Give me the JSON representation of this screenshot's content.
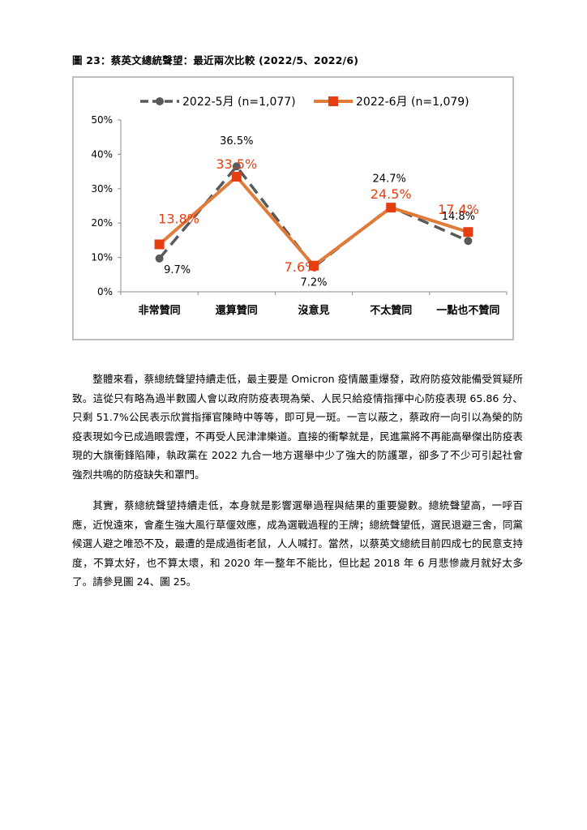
{
  "figure": {
    "caption": "圖 23：蔡英文總統聲望：最近兩次比較 (2022/5、2022/6)"
  },
  "chart_data": {
    "type": "line",
    "categories": [
      "非常贊同",
      "還算贊同",
      "沒意見",
      "不太贊同",
      "一點也不贊同"
    ],
    "ylim": [
      0,
      50
    ],
    "yticks": [
      0,
      10,
      20,
      30,
      40,
      50
    ],
    "ytick_labels": [
      "0%",
      "10%",
      "20%",
      "30%",
      "40%",
      "50%"
    ],
    "grid": false,
    "legend": "top",
    "series": [
      {
        "name": "2022-5月 (n=1,077)",
        "values": [
          9.7,
          36.5,
          7.2,
          24.7,
          14.8
        ],
        "labels": [
          "9.7%",
          "36.5%",
          "7.2%",
          "24.7%",
          "14.8%"
        ],
        "color": "#595959",
        "style": "dashed",
        "marker": "circle"
      },
      {
        "name": "2022-6月 (n=1,079)",
        "values": [
          13.8,
          33.5,
          7.6,
          24.5,
          17.4
        ],
        "labels": [
          "13.8%",
          "33.5%",
          "7.6%",
          "24.5%",
          "17.4%"
        ],
        "color": "#E07B39",
        "marker_color": "#E53E12",
        "style": "solid",
        "marker": "square"
      }
    ]
  },
  "paragraphs": [
    "整體來看，蔡總統聲望持續走低，最主要是 Omicron 疫情嚴重爆發，政府防疫效能備受質疑所致。這從只有略為過半數國人會以政府防疫表現為榮、人民只給疫情指揮中心防疫表現 65.86 分、只剩 51.7%公民表示欣賞指揮官陳時中等等，即可見一斑。一言以蔽之，蔡政府一向引以為榮的防疫表現如今已成過眼雲煙，不再受人民津津樂道。直接的衝擊就是，民進黨將不再能高舉傑出防疫表現的大旗衝鋒陷陣，執政黨在 2022 九合一地方選舉中少了強大的防護罩，卻多了不少可引起社會強烈共鳴的防疫缺失和罩門。",
    "其實，蔡總統聲望持續走低，本身就是影響選舉過程與結果的重要變數。總統聲望高，一呼百應，近悅遠來，會產生強大風行草偃效應，成為選戰過程的王牌；總統聲望低，選民退避三舍，同黨候選人避之唯恐不及，最遭的是成過街老鼠，人人喊打。當然，以蔡英文總統目前四成七的民意支持度，不算太好，也不算太壞，和 2020 年一整年不能比，但比起 2018 年 6 月悲慘歲月就好太多了。請參見圖 24、圖 25。"
  ]
}
